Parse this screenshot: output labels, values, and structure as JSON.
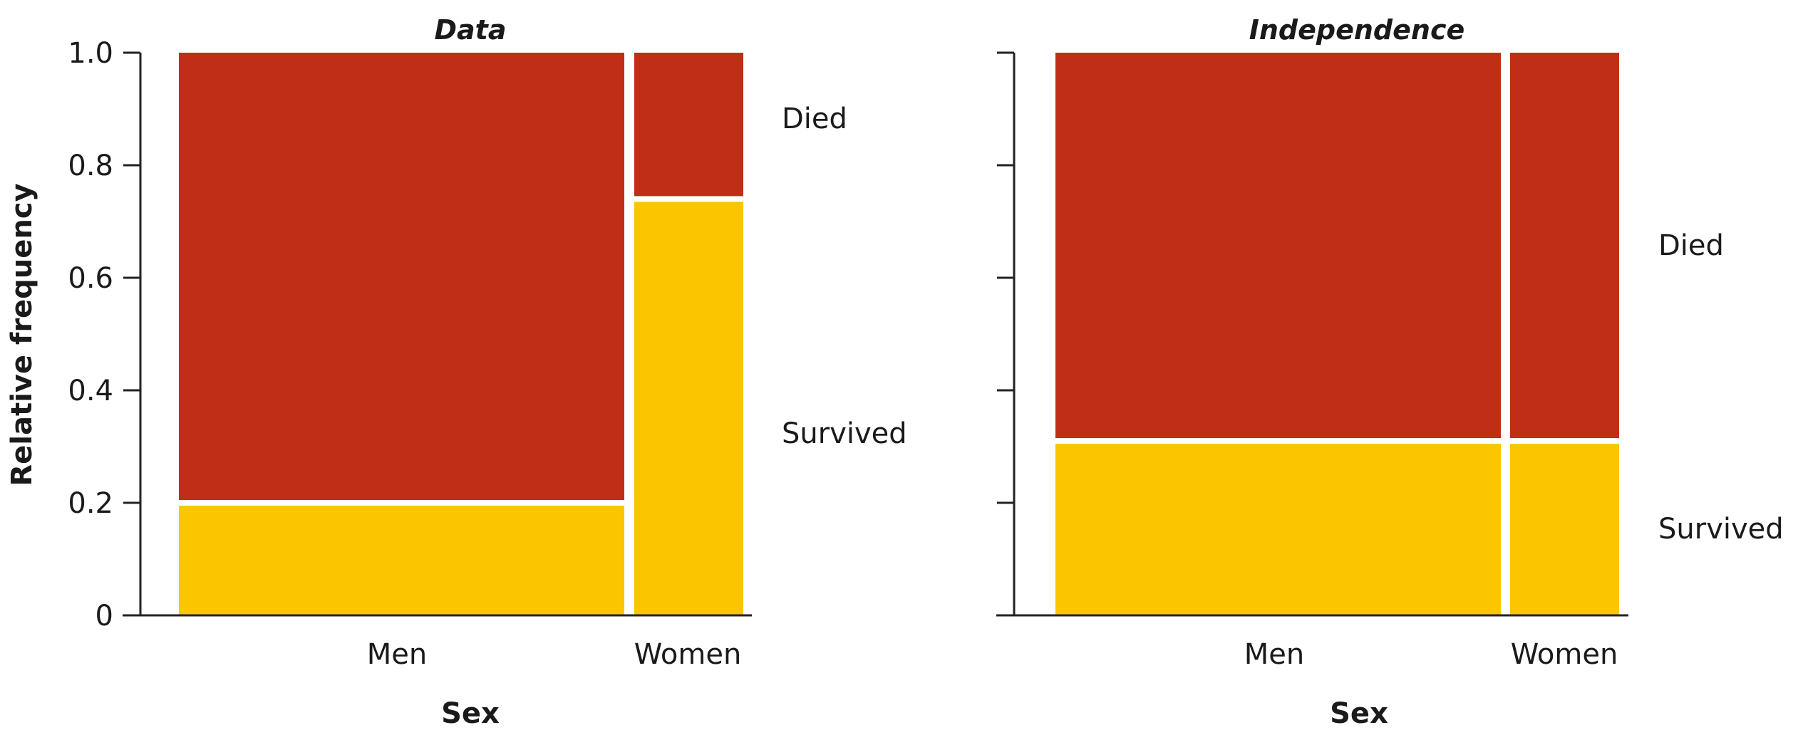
{
  "chart_data": [
    {
      "type": "mosaic",
      "title": "Data",
      "xlabel": "Sex",
      "ylabel": "Relative frequency",
      "ylim": [
        0,
        1
      ],
      "yticks": [
        "0",
        "0.2",
        "0.4",
        "0.6",
        "0.8",
        "1.0"
      ],
      "categories": [
        "Men",
        "Women"
      ],
      "category_widths": [
        0.8,
        0.2
      ],
      "series": [
        {
          "name": "Survived",
          "color": "#fbc500",
          "values": [
            0.2,
            0.74
          ]
        },
        {
          "name": "Died",
          "color": "#c12e17",
          "values": [
            0.8,
            0.26
          ]
        }
      ]
    },
    {
      "type": "mosaic",
      "title": "Independence",
      "xlabel": "Sex",
      "ylim": [
        0,
        1
      ],
      "categories": [
        "Men",
        "Women"
      ],
      "category_widths": [
        0.8,
        0.2
      ],
      "series": [
        {
          "name": "Survived",
          "color": "#fbc500",
          "values": [
            0.31,
            0.31
          ]
        },
        {
          "name": "Died",
          "color": "#c12e17",
          "values": [
            0.69,
            0.69
          ]
        }
      ]
    }
  ]
}
